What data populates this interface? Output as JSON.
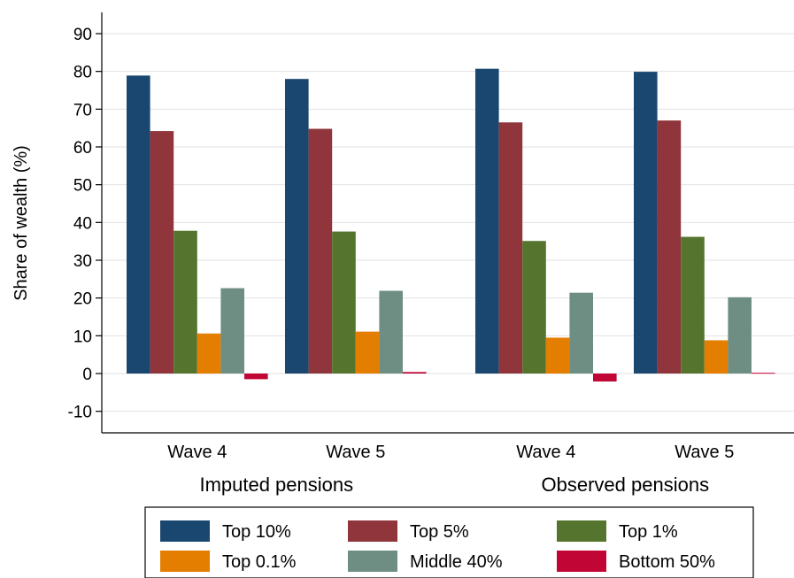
{
  "chart_data": {
    "type": "bar",
    "ylabel": "Share of wealth (%)",
    "ylim": [
      -15,
      95
    ],
    "yticks": [
      -10,
      0,
      10,
      20,
      30,
      40,
      50,
      60,
      70,
      80,
      90
    ],
    "grid": true,
    "legend_position": "bottom",
    "groups": [
      {
        "label": "Imputed pensions",
        "waves": [
          {
            "label": "Wave 4",
            "values": [
              78.9,
              64.2,
              37.8,
              10.6,
              22.6,
              -1.5
            ]
          },
          {
            "label": "Wave 5",
            "values": [
              78.0,
              64.8,
              37.6,
              11.1,
              21.9,
              0.4
            ]
          }
        ]
      },
      {
        "label": "Observed pensions",
        "waves": [
          {
            "label": "Wave 4",
            "values": [
              80.7,
              66.5,
              35.1,
              9.5,
              21.4,
              -2.1
            ]
          },
          {
            "label": "Wave 5",
            "values": [
              79.9,
              67.0,
              36.2,
              8.8,
              20.2,
              0.2
            ]
          }
        ]
      }
    ],
    "series": [
      {
        "name": "Top 10%",
        "color": "#1a476f"
      },
      {
        "name": "Top 5%",
        "color": "#90353b"
      },
      {
        "name": "Top 1%",
        "color": "#55752f"
      },
      {
        "name": "Top 0.1%",
        "color": "#e37e00"
      },
      {
        "name": "Middle 40%",
        "color": "#6e8e84"
      },
      {
        "name": "Bottom 50%",
        "color": "#c10534"
      }
    ]
  }
}
